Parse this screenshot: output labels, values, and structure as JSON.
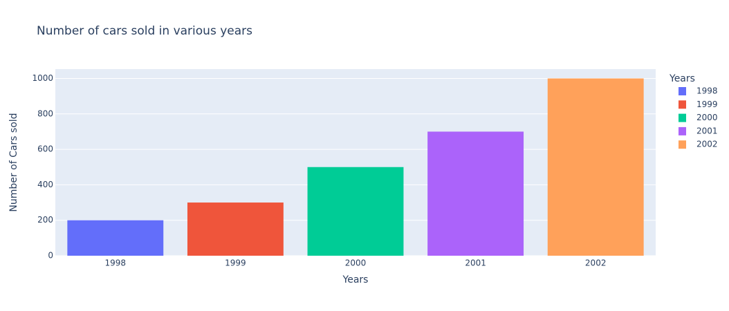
{
  "chart_data": {
    "type": "bar",
    "title": "Number of cars sold in various years",
    "x_label": "Years",
    "y_label": "Number of Cars sold",
    "legend_title": "Years",
    "categories": [
      "1998",
      "1999",
      "2000",
      "2001",
      "2002"
    ],
    "series": [
      {
        "name": "1998",
        "color": "#636efa",
        "values": [
          200,
          null,
          null,
          null,
          null
        ]
      },
      {
        "name": "1999",
        "color": "#EF553B",
        "values": [
          null,
          300,
          null,
          null,
          null
        ]
      },
      {
        "name": "2000",
        "color": "#00cc96",
        "values": [
          null,
          null,
          500,
          null,
          null
        ]
      },
      {
        "name": "2001",
        "color": "#ab63fa",
        "values": [
          null,
          null,
          null,
          700,
          null
        ]
      },
      {
        "name": "2002",
        "color": "#FFA15A",
        "values": [
          null,
          null,
          null,
          null,
          1000
        ]
      }
    ],
    "ylim": [
      0,
      1052.6
    ],
    "yticks": [
      0,
      200,
      400,
      600,
      800,
      1000
    ],
    "grid": true,
    "legend": "right"
  }
}
